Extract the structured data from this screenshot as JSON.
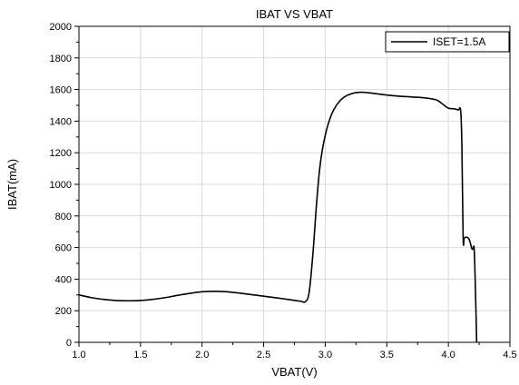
{
  "chart_data": {
    "type": "line",
    "title": "IBAT VS VBAT",
    "xlabel": "VBAT(V)",
    "ylabel": "IBAT(mA)",
    "xlim": [
      1.0,
      4.5
    ],
    "ylim": [
      0,
      2000
    ],
    "x_ticks": [
      "1.0",
      "1.5",
      "2.0",
      "2.5",
      "3.0",
      "3.5",
      "4.0",
      "4.5"
    ],
    "y_ticks": [
      "0",
      "200",
      "400",
      "600",
      "800",
      "1000",
      "1200",
      "1400",
      "1600",
      "1800",
      "2000"
    ],
    "grid": true,
    "legend_position": "top-right",
    "series": [
      {
        "name": "ISET=1.5A",
        "color": "#000000",
        "x": [
          1.0,
          1.1,
          1.2,
          1.3,
          1.4,
          1.5,
          1.6,
          1.7,
          1.8,
          1.9,
          2.0,
          2.1,
          2.2,
          2.3,
          2.4,
          2.5,
          2.6,
          2.7,
          2.8,
          2.84,
          2.87,
          2.9,
          2.93,
          2.96,
          3.0,
          3.05,
          3.1,
          3.15,
          3.2,
          3.25,
          3.3,
          3.4,
          3.5,
          3.6,
          3.7,
          3.8,
          3.9,
          3.95,
          4.0,
          4.05,
          4.08,
          4.1,
          4.11,
          4.12,
          4.13,
          4.15,
          4.17,
          4.19,
          4.2,
          4.21,
          4.22,
          4.23
        ],
        "y": [
          300,
          283,
          272,
          265,
          263,
          265,
          272,
          283,
          297,
          310,
          320,
          323,
          320,
          312,
          302,
          292,
          282,
          271,
          260,
          258,
          320,
          560,
          880,
          1130,
          1310,
          1440,
          1510,
          1550,
          1570,
          1580,
          1583,
          1575,
          1565,
          1558,
          1553,
          1548,
          1535,
          1510,
          1482,
          1478,
          1470,
          1465,
          1240,
          660,
          662,
          665,
          650,
          595,
          590,
          590,
          330,
          0
        ]
      }
    ]
  }
}
